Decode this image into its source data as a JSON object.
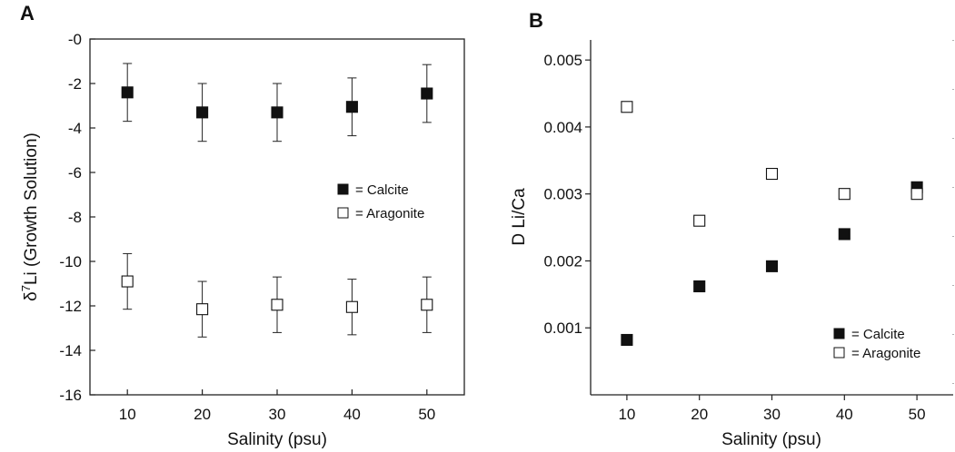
{
  "chart_data": [
    {
      "panel": "A",
      "type": "scatter",
      "xlabel": "Salinity (psu)",
      "ylabel": "δ7Li (Growth Solution)",
      "ylabel_parts": {
        "pre": "δ",
        "sup": "7",
        "post": "Li (Growth Solution)"
      },
      "xlim": [
        5,
        55
      ],
      "ylim": [
        -16,
        0
      ],
      "xticks": [
        10,
        20,
        30,
        40,
        50
      ],
      "xtick_labels": [
        "10",
        "20",
        "30",
        "40",
        "50"
      ],
      "yticks": [
        0,
        -2,
        -4,
        -6,
        -8,
        -10,
        -12,
        -14,
        -16
      ],
      "ytick_labels": [
        "-0",
        "-2",
        "-4",
        "-6",
        "-8",
        "-10",
        "-12",
        "-14",
        "-16"
      ],
      "legend_position": "center-right",
      "series": [
        {
          "name": "Calcite",
          "marker": "filled-square",
          "x": [
            10,
            20,
            30,
            40,
            50
          ],
          "y": [
            -2.4,
            -3.3,
            -3.3,
            -3.05,
            -2.45
          ],
          "err": [
            1.3,
            1.3,
            1.3,
            1.3,
            1.3
          ]
        },
        {
          "name": "Aragonite",
          "marker": "open-square",
          "x": [
            10,
            20,
            30,
            40,
            50
          ],
          "y": [
            -10.9,
            -12.15,
            -11.95,
            -12.05,
            -11.95
          ],
          "err": [
            1.25,
            1.25,
            1.25,
            1.25,
            1.25
          ]
        }
      ],
      "legend_labels": [
        "= Calcite",
        "= Aragonite"
      ]
    },
    {
      "panel": "B",
      "type": "scatter",
      "xlabel": "Salinity (psu)",
      "ylabel": "D Li/Ca",
      "xlim": [
        5,
        55
      ],
      "ylim": [
        0,
        0.0053
      ],
      "xticks": [
        10,
        20,
        30,
        40,
        50
      ],
      "xtick_labels": [
        "10",
        "20",
        "30",
        "40",
        "50"
      ],
      "yticks": [
        0.001,
        0.002,
        0.003,
        0.004,
        0.005
      ],
      "ytick_labels": [
        "0.001",
        "0.002",
        "0.003",
        "0.004",
        "0.005"
      ],
      "legend_position": "bottom-right",
      "series": [
        {
          "name": "Calcite",
          "marker": "filled-square",
          "x": [
            10,
            20,
            30,
            40,
            50
          ],
          "y": [
            0.00082,
            0.00162,
            0.00192,
            0.0024,
            0.0031
          ]
        },
        {
          "name": "Aragonite",
          "marker": "open-square",
          "x": [
            10,
            20,
            30,
            40,
            50
          ],
          "y": [
            0.0043,
            0.0026,
            0.0033,
            0.003,
            0.003
          ]
        }
      ],
      "legend_labels": [
        "= Calcite",
        "= Aragonite"
      ]
    }
  ]
}
